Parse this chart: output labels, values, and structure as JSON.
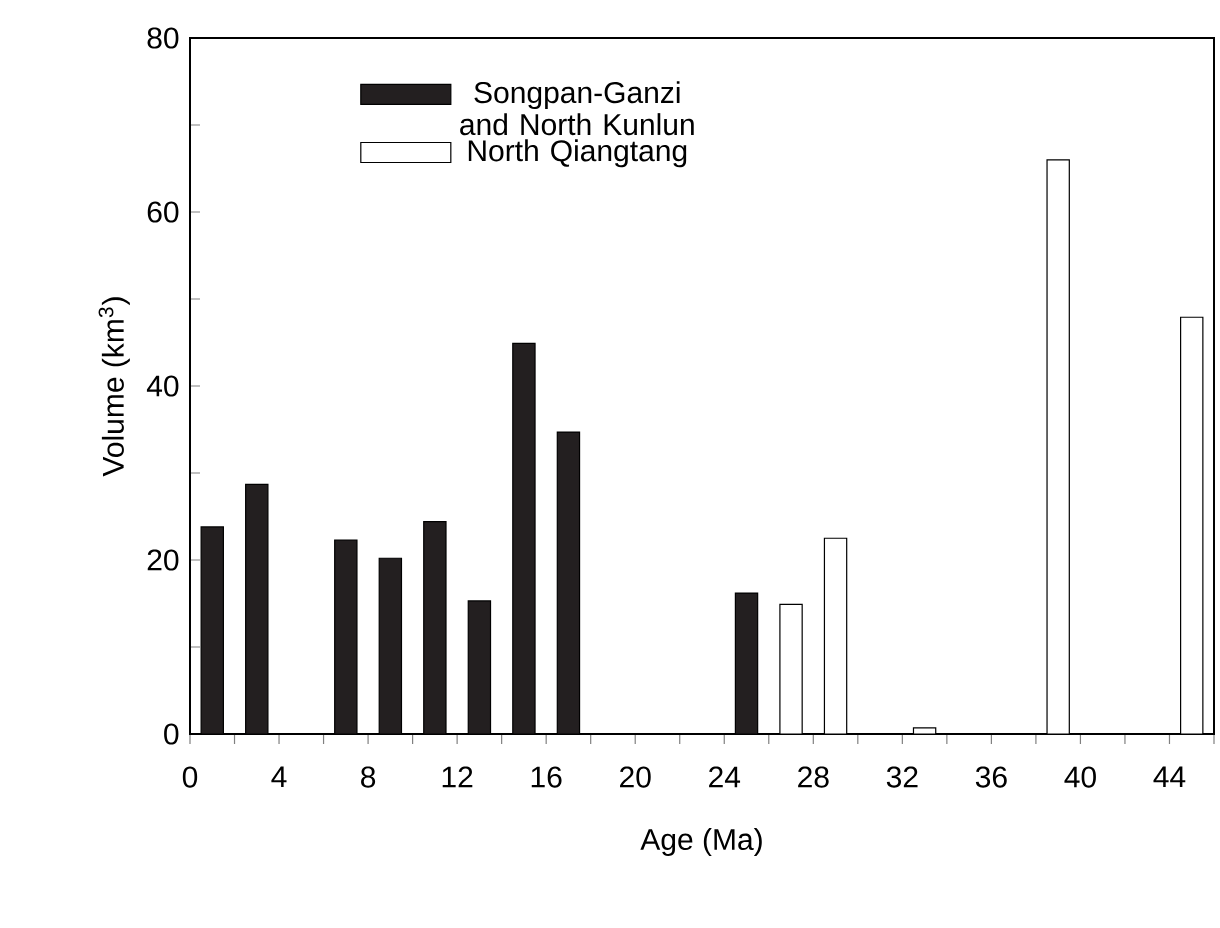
{
  "chart_data": {
    "type": "bar",
    "xlabel": "Age (Ma)",
    "ylabel": "Volume (km$^{3}$)",
    "series": [
      {
        "name": "Songpan-Ganzi and North Kunlun",
        "color": "#231f20",
        "x": [
          1,
          3,
          7,
          9,
          11,
          13,
          15,
          17,
          25
        ],
        "values": [
          23.8,
          28.7,
          22.3,
          20.2,
          24.4,
          15.3,
          44.9,
          34.7,
          16.2
        ]
      },
      {
        "name": "North Qiangtang",
        "color": "#ffffff",
        "x": [
          27,
          29,
          33,
          39,
          45
        ],
        "values": [
          14.9,
          22.5,
          0.7,
          66,
          47.9
        ]
      }
    ],
    "xlim": [
      0,
      46
    ],
    "xticks": [
      0,
      {
        "value": 2,
        "label": null
      },
      4,
      {
        "value": 6,
        "label": null
      },
      8,
      {
        "value": 10,
        "label": null
      },
      12,
      {
        "value": 14,
        "label": null
      },
      16,
      {
        "value": 18,
        "label": null
      },
      20,
      {
        "value": 22,
        "label": null
      },
      24,
      {
        "value": 26,
        "label": null
      },
      28,
      {
        "value": 30,
        "label": null
      },
      32,
      {
        "value": 34,
        "label": null
      },
      36,
      {
        "value": 38,
        "label": null
      },
      40,
      {
        "value": 42,
        "label": null
      },
      44,
      {
        "value": 46,
        "label": null
      }
    ],
    "ylim": [
      0,
      80
    ],
    "yticks": [
      0,
      {
        "value": 10,
        "label": null
      },
      20,
      {
        "value": 30,
        "label": null
      },
      40,
      {
        "value": 50,
        "label": null
      },
      60,
      {
        "value": 70,
        "label": null
      },
      80
    ],
    "grid": false,
    "legend": "top left"
  }
}
